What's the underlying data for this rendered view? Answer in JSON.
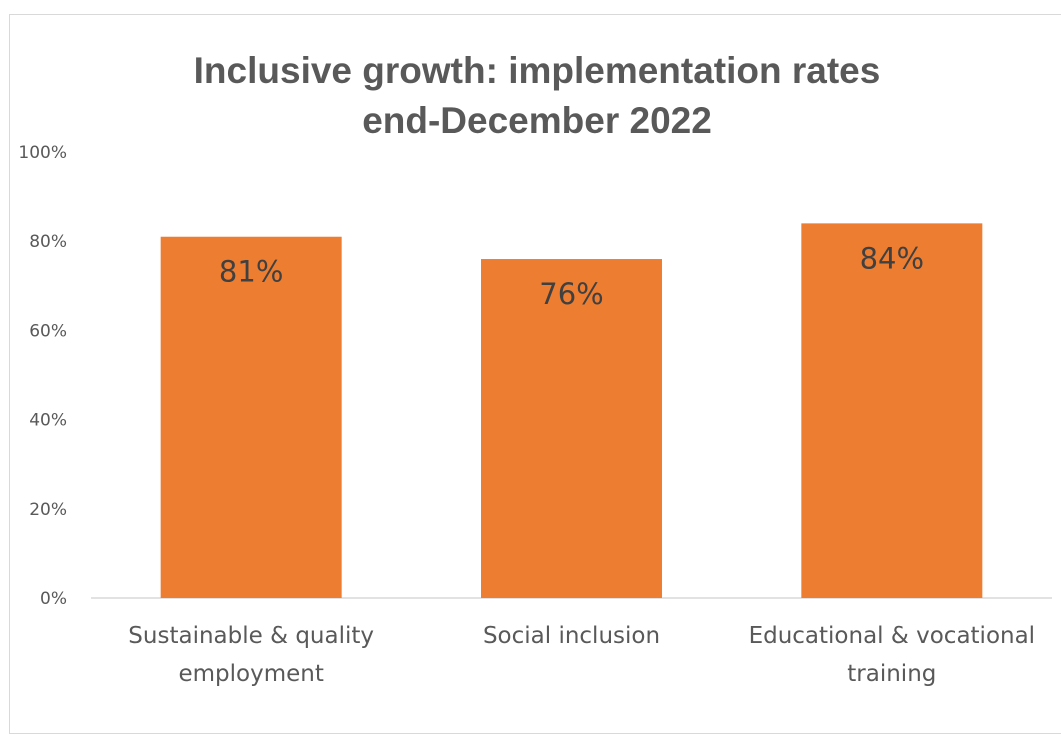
{
  "chart_data": {
    "type": "bar",
    "title_lines": [
      "Inclusive growth: implementation rates",
      "end-December 2022"
    ],
    "categories": [
      [
        "Sustainable & quality",
        "employment"
      ],
      [
        "Social inclusion"
      ],
      [
        "Educational & vocational",
        "training"
      ]
    ],
    "values": [
      81,
      76,
      84
    ],
    "data_labels": [
      "81%",
      "76%",
      "84%"
    ],
    "ylim": [
      0,
      100
    ],
    "yticks": [
      0,
      20,
      40,
      60,
      80,
      100
    ],
    "ytick_labels": [
      "0%",
      "20%",
      "40%",
      "60%",
      "80%",
      "100%"
    ],
    "bar_color": "#ed7d31",
    "grid": false
  }
}
